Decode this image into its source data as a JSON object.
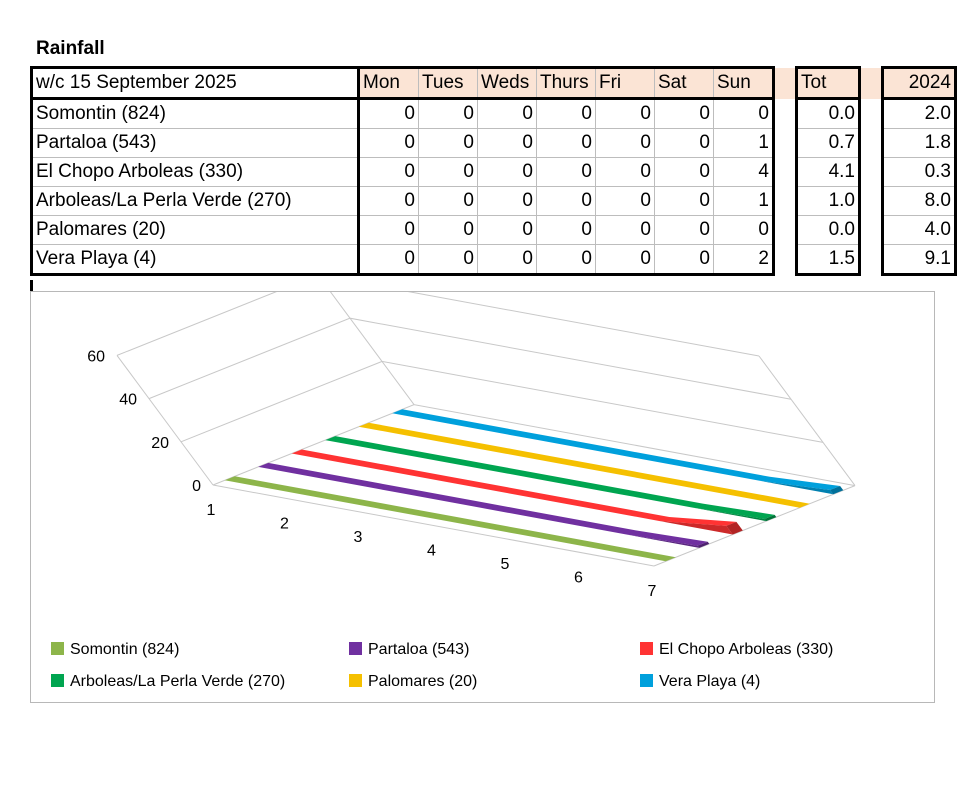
{
  "title": "Rainfall",
  "table": {
    "week_label": "w/c 15 September  2025",
    "days": [
      "Mon",
      "Tues",
      "Weds",
      "Thurs",
      "Fri",
      "Sat",
      "Sun"
    ],
    "total_label": "Tot",
    "year_label": "2024",
    "rows": [
      {
        "location": "Somontin (824)",
        "values": [
          0,
          0,
          0,
          0,
          0,
          0,
          0
        ],
        "total": "0.0",
        "prev": "2.0"
      },
      {
        "location": "Partaloa (543)",
        "values": [
          0,
          0,
          0,
          0,
          0,
          0,
          1
        ],
        "total": "0.7",
        "prev": "1.8"
      },
      {
        "location": "El Chopo Arboleas (330)",
        "values": [
          0,
          0,
          0,
          0,
          0,
          0,
          4
        ],
        "total": "4.1",
        "prev": "0.3"
      },
      {
        "location": "Arboleas/La Perla Verde (270)",
        "values": [
          0,
          0,
          0,
          0,
          0,
          0,
          1
        ],
        "total": "1.0",
        "prev": "8.0"
      },
      {
        "location": "Palomares (20)",
        "values": [
          0,
          0,
          0,
          0,
          0,
          0,
          0
        ],
        "total": "0.0",
        "prev": "4.0"
      },
      {
        "location": "Vera Playa (4)",
        "values": [
          0,
          0,
          0,
          0,
          0,
          0,
          2
        ],
        "total": "1.5",
        "prev": "9.1"
      }
    ]
  },
  "chart_data": {
    "type": "area",
    "x": [
      1,
      2,
      3,
      4,
      5,
      6,
      7
    ],
    "ylim": [
      0,
      60
    ],
    "yticks": [
      0,
      20,
      40,
      60
    ],
    "legend_position": "bottom",
    "series": [
      {
        "name": "Somontin (824)",
        "color": "#8db54a",
        "values": [
          0,
          0,
          0,
          0,
          0,
          0,
          0
        ]
      },
      {
        "name": "Partaloa (543)",
        "color": "#7030a0",
        "values": [
          0,
          0,
          0,
          0,
          0,
          0,
          1
        ]
      },
      {
        "name": "El Chopo Arboleas (330)",
        "color": "#ff3333",
        "values": [
          0,
          0,
          0,
          0,
          0,
          0,
          4
        ]
      },
      {
        "name": "Arboleas/La Perla Verde (270)",
        "color": "#00a550",
        "values": [
          0,
          0,
          0,
          0,
          0,
          0,
          1
        ]
      },
      {
        "name": "Palomares (20)",
        "color": "#f5c000",
        "values": [
          0,
          0,
          0,
          0,
          0,
          0,
          0
        ]
      },
      {
        "name": "Vera Playa (4)",
        "color": "#00a0dc",
        "values": [
          0,
          0,
          0,
          0,
          0,
          0,
          2
        ]
      }
    ]
  }
}
